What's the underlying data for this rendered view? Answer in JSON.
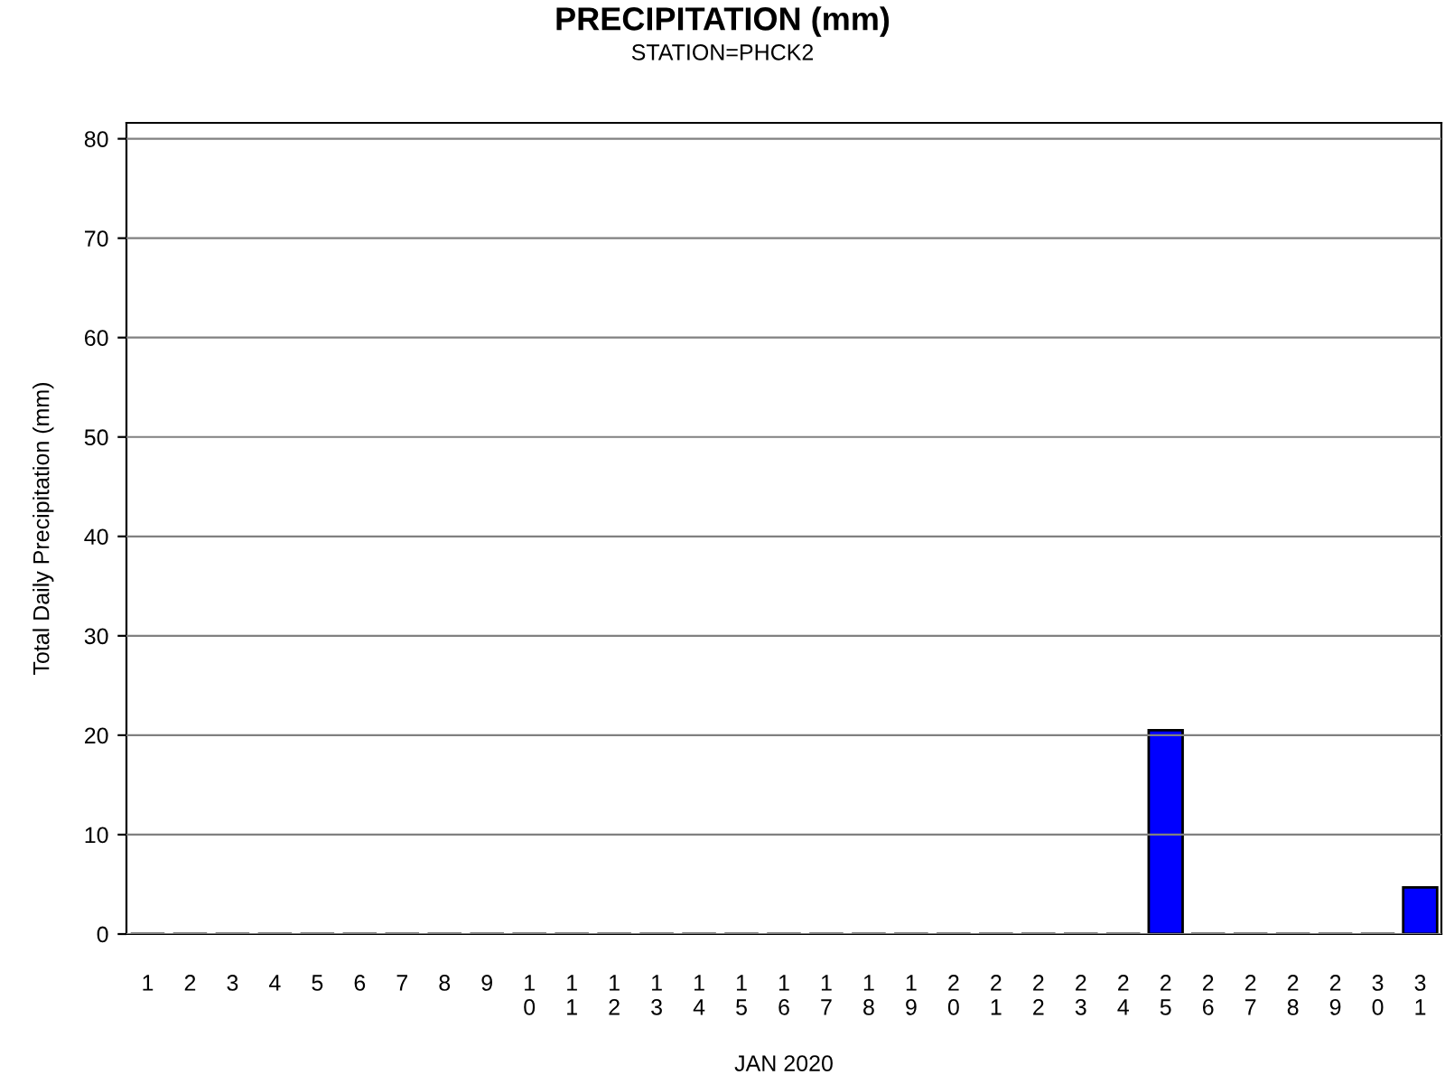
{
  "chart_data": {
    "type": "bar",
    "title": "PRECIPITATION (mm)",
    "subtitle": "STATION=PHCK2",
    "xlabel": "JAN 2020",
    "ylabel": "Total Daily Precipitation (mm)",
    "categories": [
      "1",
      "2",
      "3",
      "4",
      "5",
      "6",
      "7",
      "8",
      "9",
      "10",
      "11",
      "12",
      "13",
      "14",
      "15",
      "16",
      "17",
      "18",
      "19",
      "20",
      "21",
      "22",
      "23",
      "24",
      "25",
      "26",
      "27",
      "28",
      "29",
      "30",
      "31"
    ],
    "values": [
      0,
      0,
      0,
      0,
      0,
      0,
      0,
      0,
      0,
      0,
      0,
      0,
      0,
      0,
      0,
      0,
      0,
      0,
      0,
      0,
      0,
      0,
      0,
      0,
      20.5,
      0,
      0,
      0,
      0,
      0,
      4.7
    ],
    "color": "#0000ff",
    "ylim": [
      0,
      81.6
    ],
    "yticks": [
      0,
      10,
      20,
      30,
      40,
      50,
      60,
      70,
      80
    ],
    "grid": "y"
  }
}
